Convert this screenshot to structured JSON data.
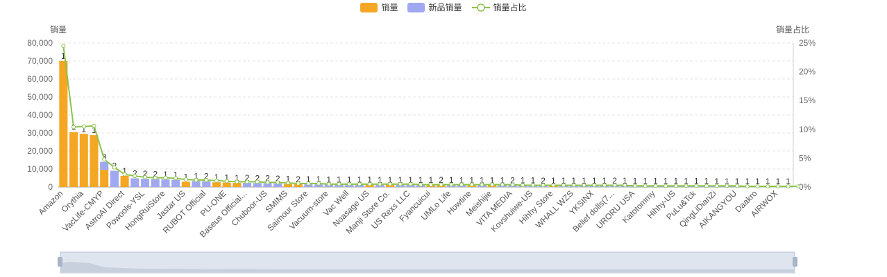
{
  "legend": {
    "sales": "销量",
    "new_sales": "新品销量",
    "share": "销量占比"
  },
  "axis": {
    "left_name": "销量",
    "right_name": "销量占比"
  },
  "colors": {
    "sales": "#F5A623",
    "new_sales": "#9FA8F0",
    "share": "#8BC34A",
    "grid": "#e6e6e6",
    "slider_fill": "#dfe5ef",
    "slider_border": "#b7c2d6"
  },
  "chart_data": {
    "type": "bar",
    "categories": [
      "Amazon",
      "",
      "Orythia",
      "",
      "VacLife-CMYP",
      "",
      "AstroAI Direct",
      "",
      "Powools-YSL",
      "",
      "HongRuiStore",
      "",
      "Jastar US",
      "",
      "RUBOT Official",
      "",
      "PU-ONE",
      "",
      "Baseus Official...",
      "",
      "Chuboor-US",
      "",
      "SMIMS",
      "",
      "Saimour Store",
      "",
      "Vacuum-store",
      "",
      "Vac Well",
      "",
      "Noasage US",
      "",
      "Manji Store Co.",
      "",
      "US Rexs LLC",
      "",
      "Fyancuicui",
      "",
      "UMLo Life",
      "",
      "Howtine",
      "",
      "Meishijie",
      "",
      "VITA MEDIA",
      "",
      "Kovshuiwe-US",
      "",
      "Hihhy Store",
      "",
      "WHALL WZS",
      "",
      "YKSINX",
      "",
      "Belief dolls(7...",
      "",
      "URORU USA",
      "",
      "Katotommy",
      "",
      "Hihhy-US",
      "",
      "PuLu&Tck",
      "",
      "QingLiDianZi",
      "",
      "AIKANGYOU",
      "",
      "Daakro",
      "",
      "AIRWOX",
      ""
    ],
    "series": [
      {
        "name": "销量",
        "values": [
          70000,
          30500,
          29500,
          28800,
          9500,
          0,
          6200,
          0,
          0,
          0,
          0,
          0,
          2900,
          0,
          0,
          2600,
          2500,
          2300,
          0,
          0,
          0,
          0,
          1700,
          1600,
          0,
          0,
          0,
          0,
          0,
          0,
          1300,
          0,
          1250,
          0,
          0,
          0,
          1150,
          1100,
          0,
          0,
          1000,
          0,
          950,
          0,
          0,
          0,
          0,
          0,
          850,
          0,
          0,
          0,
          0,
          0,
          0,
          0,
          0,
          0,
          0,
          0,
          0,
          0,
          0,
          0,
          0,
          0,
          0,
          0,
          0,
          0,
          0,
          0,
          0
        ]
      },
      {
        "name": "新品销量",
        "values": [
          0,
          0,
          0,
          0,
          4500,
          9000,
          0,
          4800,
          4600,
          4400,
          4200,
          4000,
          0,
          3300,
          3200,
          0,
          0,
          0,
          2300,
          2200,
          2100,
          2000,
          0,
          0,
          1500,
          1450,
          1400,
          1350,
          1300,
          1300,
          0,
          1250,
          0,
          1200,
          1200,
          1150,
          0,
          0,
          1100,
          1050,
          0,
          1000,
          0,
          950,
          950,
          900,
          900,
          850,
          0,
          850,
          800,
          800,
          800,
          750,
          700,
          700,
          650,
          650,
          600,
          600,
          550,
          550,
          500,
          500,
          450,
          450,
          400,
          400,
          350,
          350,
          300,
          300,
          300
        ]
      }
    ],
    "share_percent": [
      24.5,
      10.4,
      10.5,
      10.6,
      4.8,
      3.4,
      2.2,
      1.9,
      1.7,
      1.6,
      1.6,
      1.5,
      1.3,
      1.2,
      1.2,
      1.1,
      1.0,
      0.9,
      0.9,
      0.9,
      0.8,
      0.8,
      0.7,
      0.6,
      0.6,
      0.6,
      0.5,
      0.5,
      0.5,
      0.5,
      0.5,
      0.5,
      0.5,
      0.5,
      0.5,
      0.4,
      0.4,
      0.4,
      0.4,
      0.4,
      0.4,
      0.4,
      0.4,
      0.4,
      0.4,
      0.3,
      0.3,
      0.3,
      0.3,
      0.3,
      0.3,
      0.3,
      0.3,
      0.3,
      0.3,
      0.3,
      0.2,
      0.2,
      0.2,
      0.2,
      0.2,
      0.2,
      0.2,
      0.2,
      0.2,
      0.2,
      0.2,
      0.1,
      0.1,
      0.1,
      0.1,
      0.1,
      0.1
    ],
    "labels": [
      "1",
      "1",
      "1",
      "1",
      "3",
      "2",
      "1",
      "2",
      "2",
      "2",
      "1",
      "1",
      "1",
      "1",
      "2",
      "1",
      "1",
      "1",
      "2",
      "2",
      "2",
      "2",
      "1",
      "2",
      "1",
      "1",
      "1",
      "1",
      "1",
      "1",
      "1",
      "1",
      "1",
      "1",
      "1",
      "1",
      "1",
      "2",
      "1",
      "1",
      "1",
      "1",
      "1",
      "1",
      "2",
      "1",
      "1",
      "2",
      "1",
      "1",
      "1",
      "1",
      "1",
      "1",
      "2",
      "1",
      "1",
      "1",
      "1",
      "1",
      "1",
      "1",
      "1",
      "1",
      "1",
      "1",
      "1",
      "1",
      "1",
      "1",
      "1",
      "1",
      "1"
    ],
    "y_left": {
      "min": 0,
      "max": 80000,
      "ticks": [
        "0",
        "10,000",
        "20,000",
        "30,000",
        "40,000",
        "50,000",
        "60,000",
        "70,000",
        "80,000"
      ]
    },
    "y_right": {
      "min": 0,
      "max": 25,
      "ticks": [
        "0%",
        "5%",
        "10%",
        "15%",
        "20%",
        "25%"
      ]
    },
    "grid": true,
    "legend_position": "top-center",
    "data_zoom": true
  }
}
